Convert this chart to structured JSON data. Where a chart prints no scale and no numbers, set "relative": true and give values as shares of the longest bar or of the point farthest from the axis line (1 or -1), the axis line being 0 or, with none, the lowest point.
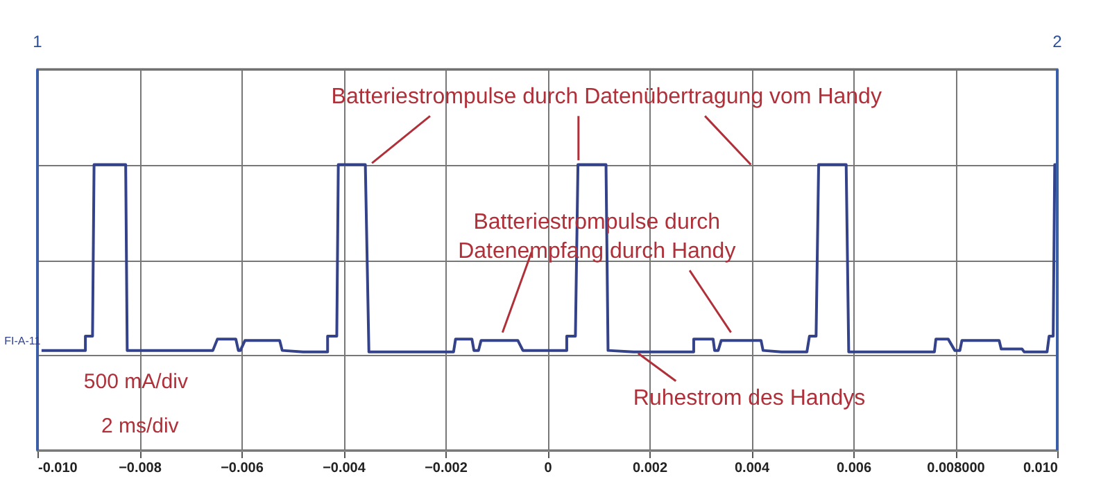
{
  "chart_data": {
    "type": "line",
    "relative": true,
    "grid": true,
    "x": [
      -0.00992,
      -0.00906,
      -0.00906,
      -0.00892,
      -0.00889,
      -0.00827,
      -0.00824,
      -0.00656,
      -0.00647,
      -0.00611,
      -0.00606,
      -0.00602,
      -0.00593,
      -0.00525,
      -0.0052,
      -0.00479,
      -0.00431,
      -0.00431,
      -0.00413,
      -0.0041,
      -0.00357,
      -0.0035,
      -0.00184,
      -0.0018,
      -0.00148,
      -0.00144,
      -0.00135,
      -0.0013,
      -0.00058,
      -0.00048,
      0.00038,
      0.00038,
      0.00055,
      0.0006,
      0.00115,
      0.00119,
      0.00169,
      0.00287,
      0.00287,
      0.00325,
      0.00328,
      0.00335,
      0.00341,
      0.00419,
      0.00423,
      0.00459,
      0.00509,
      0.00514,
      0.00527,
      0.00532,
      0.00586,
      0.00591,
      0.00759,
      0.00762,
      0.00786,
      0.00799,
      0.00809,
      0.00813,
      0.00886,
      0.0089,
      0.00931,
      0.00935,
      0.0098,
      0.00984,
      0.00992,
      0.00995,
      0.01
    ],
    "series": [
      {
        "color": "#34428a",
        "values": [
          0.35,
          0.35,
          0.4,
          0.4,
          1.0,
          1.0,
          0.35,
          0.35,
          0.39,
          0.39,
          0.35,
          0.35,
          0.385,
          0.385,
          0.35,
          0.345,
          0.345,
          0.4,
          0.4,
          1.0,
          1.0,
          0.345,
          0.345,
          0.39,
          0.39,
          0.35,
          0.35,
          0.385,
          0.385,
          0.35,
          0.35,
          0.4,
          0.4,
          1.0,
          1.0,
          0.35,
          0.345,
          0.345,
          0.39,
          0.39,
          0.35,
          0.35,
          0.385,
          0.385,
          0.35,
          0.345,
          0.345,
          0.4,
          0.4,
          1.0,
          1.0,
          0.345,
          0.345,
          0.39,
          0.39,
          0.35,
          0.35,
          0.385,
          0.385,
          0.355,
          0.355,
          0.345,
          0.345,
          0.4,
          0.4,
          1.0,
          1.0
        ]
      }
    ],
    "xlim": [
      -0.01,
      0.01
    ],
    "xticks": [
      {
        "value": -0.01,
        "label": "-0.010"
      },
      -0.008,
      -0.006,
      -0.004,
      -0.002,
      0,
      0.002,
      0.004,
      0.006,
      {
        "value": 0.008,
        "label": "0.008000"
      },
      {
        "value": 0.01,
        "label": "0.010"
      }
    ],
    "ref_lines": [
      {
        "axis": "x",
        "value": -0.01,
        "color": "#3a5fa8"
      },
      {
        "axis": "x",
        "value": 0.01,
        "color": "#3a5fa8"
      }
    ],
    "annotations": [
      "Batteriestrompulse durch Datenübertragung vom Handy",
      "Batteriestrompulse durch\nDatenempfang durch Handy",
      "Ruhestrom des Handys",
      "500 mA/div",
      "2 ms/div",
      "FI-A-11",
      "1",
      "2"
    ]
  }
}
